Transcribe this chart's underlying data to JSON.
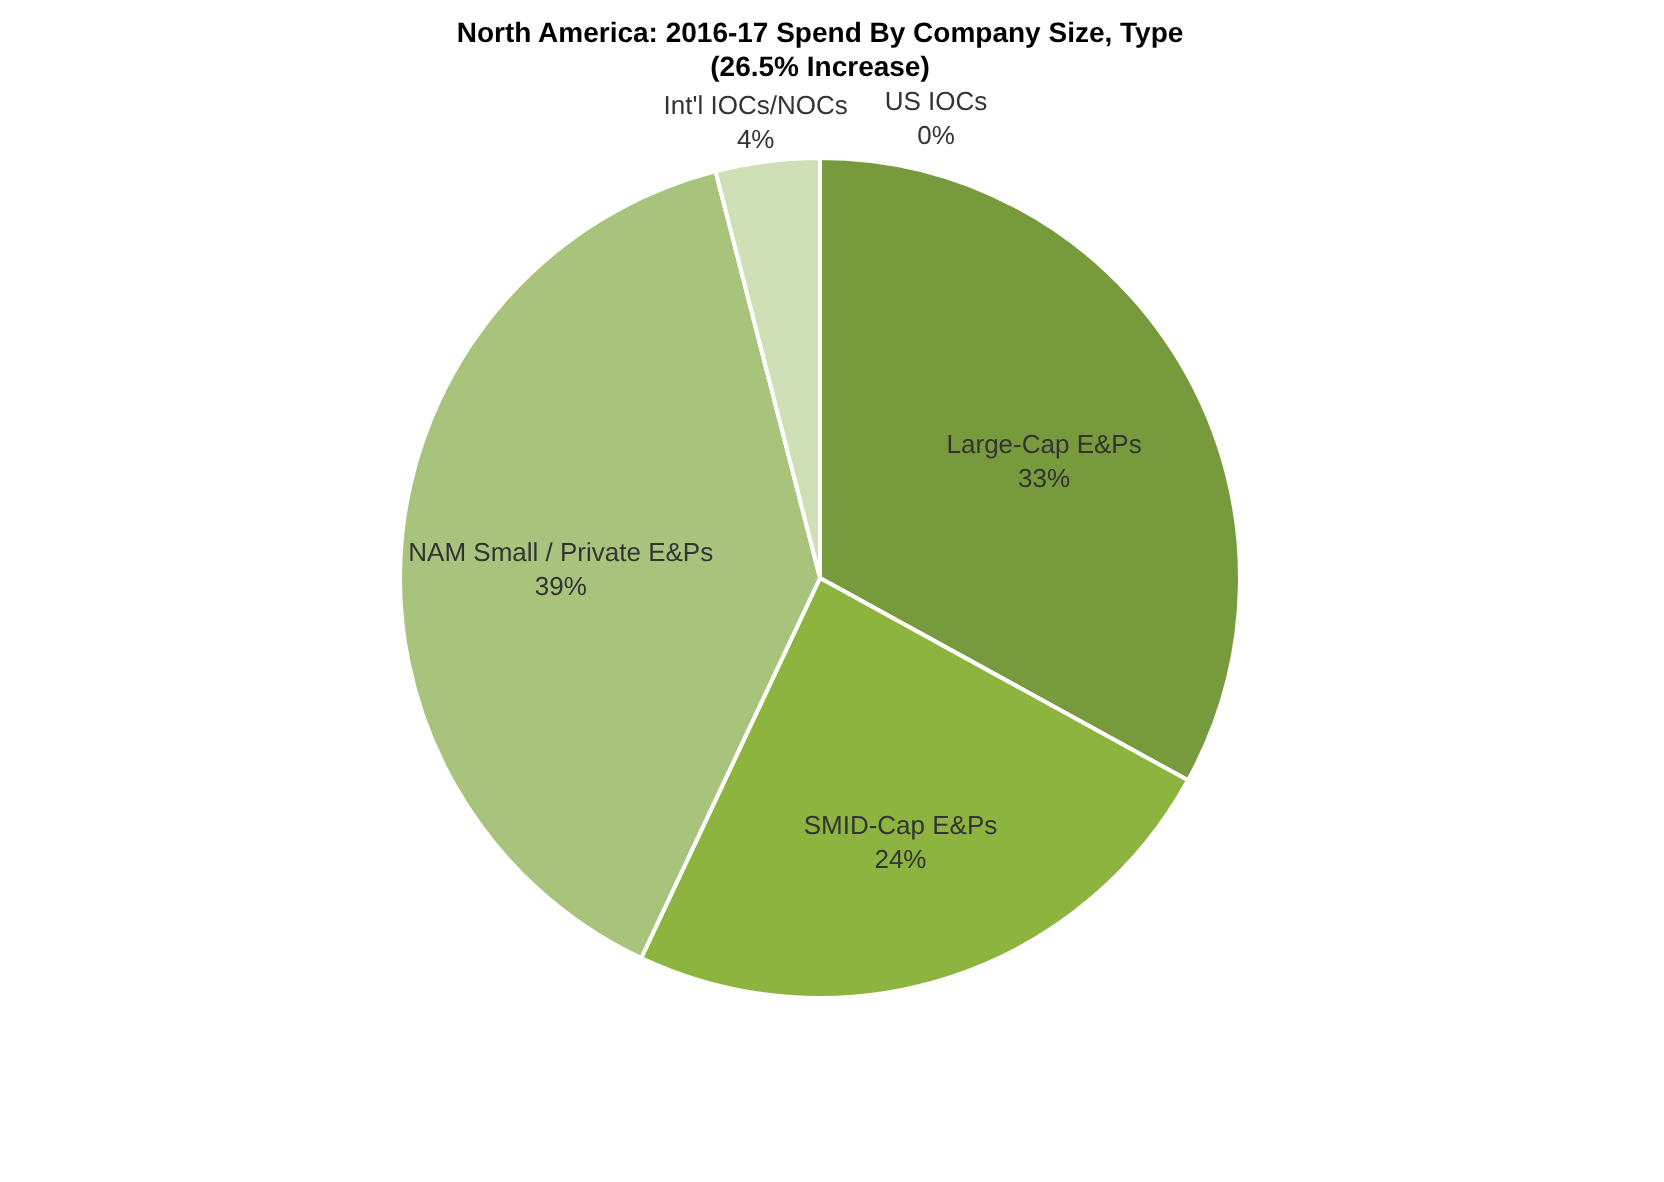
{
  "chart_data": {
    "type": "pie",
    "title": "North America: 2016-17 Spend By Company Size, Type",
    "subtitle": "(26.5% Increase)",
    "categories": [
      "US IOCs",
      "Large-Cap E&Ps",
      "SMID-Cap E&Ps",
      "NAM Small / Private E&Ps",
      "Int'l IOCs/NOCs"
    ],
    "values": [
      0,
      33,
      24,
      39,
      4
    ],
    "colors": [
      "#e4edd6",
      "#779a3c",
      "#8db43f",
      "#a8c47c",
      "#cfe0b6"
    ],
    "value_labels": [
      "0%",
      "33%",
      "24%",
      "39%",
      "4%"
    ],
    "legend": false
  }
}
